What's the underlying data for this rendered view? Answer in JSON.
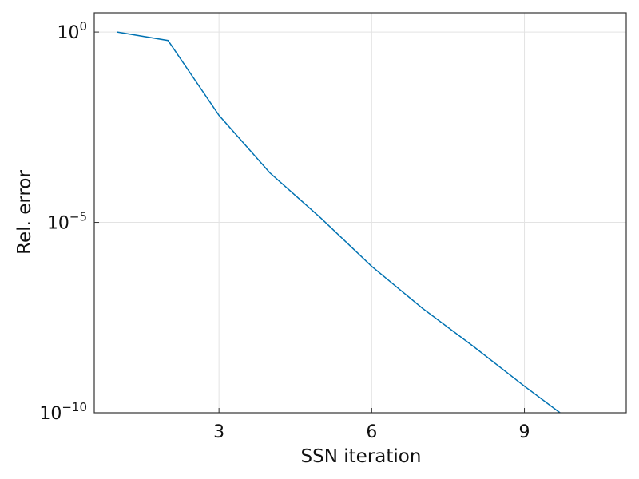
{
  "chart_data": {
    "type": "line",
    "xlabel": "SSN iteration",
    "ylabel": "Rel. error",
    "xlim": [
      0.55,
      11.0
    ],
    "ylim": [
      1e-10,
      3.2
    ],
    "yscale": "log",
    "grid": true,
    "x_ticks": [
      {
        "value": 3,
        "label": "3"
      },
      {
        "value": 6,
        "label": "6"
      },
      {
        "value": 9,
        "label": "9"
      }
    ],
    "y_ticks": [
      {
        "value": 1,
        "base": "10",
        "exponent": "0"
      },
      {
        "value": 1e-05,
        "base": "10",
        "exponent": "−5"
      },
      {
        "value": 1e-10,
        "base": "10",
        "exponent": "−10"
      }
    ],
    "series": [
      {
        "color": "#0072b2",
        "x": [
          1,
          2,
          3,
          4,
          5,
          6,
          7,
          8,
          9,
          9.7
        ],
        "y": [
          1.0,
          0.6,
          0.0065,
          0.0002,
          1.3e-05,
          7e-07,
          5.5e-08,
          5.5e-09,
          5e-10,
          1e-10
        ]
      }
    ]
  }
}
